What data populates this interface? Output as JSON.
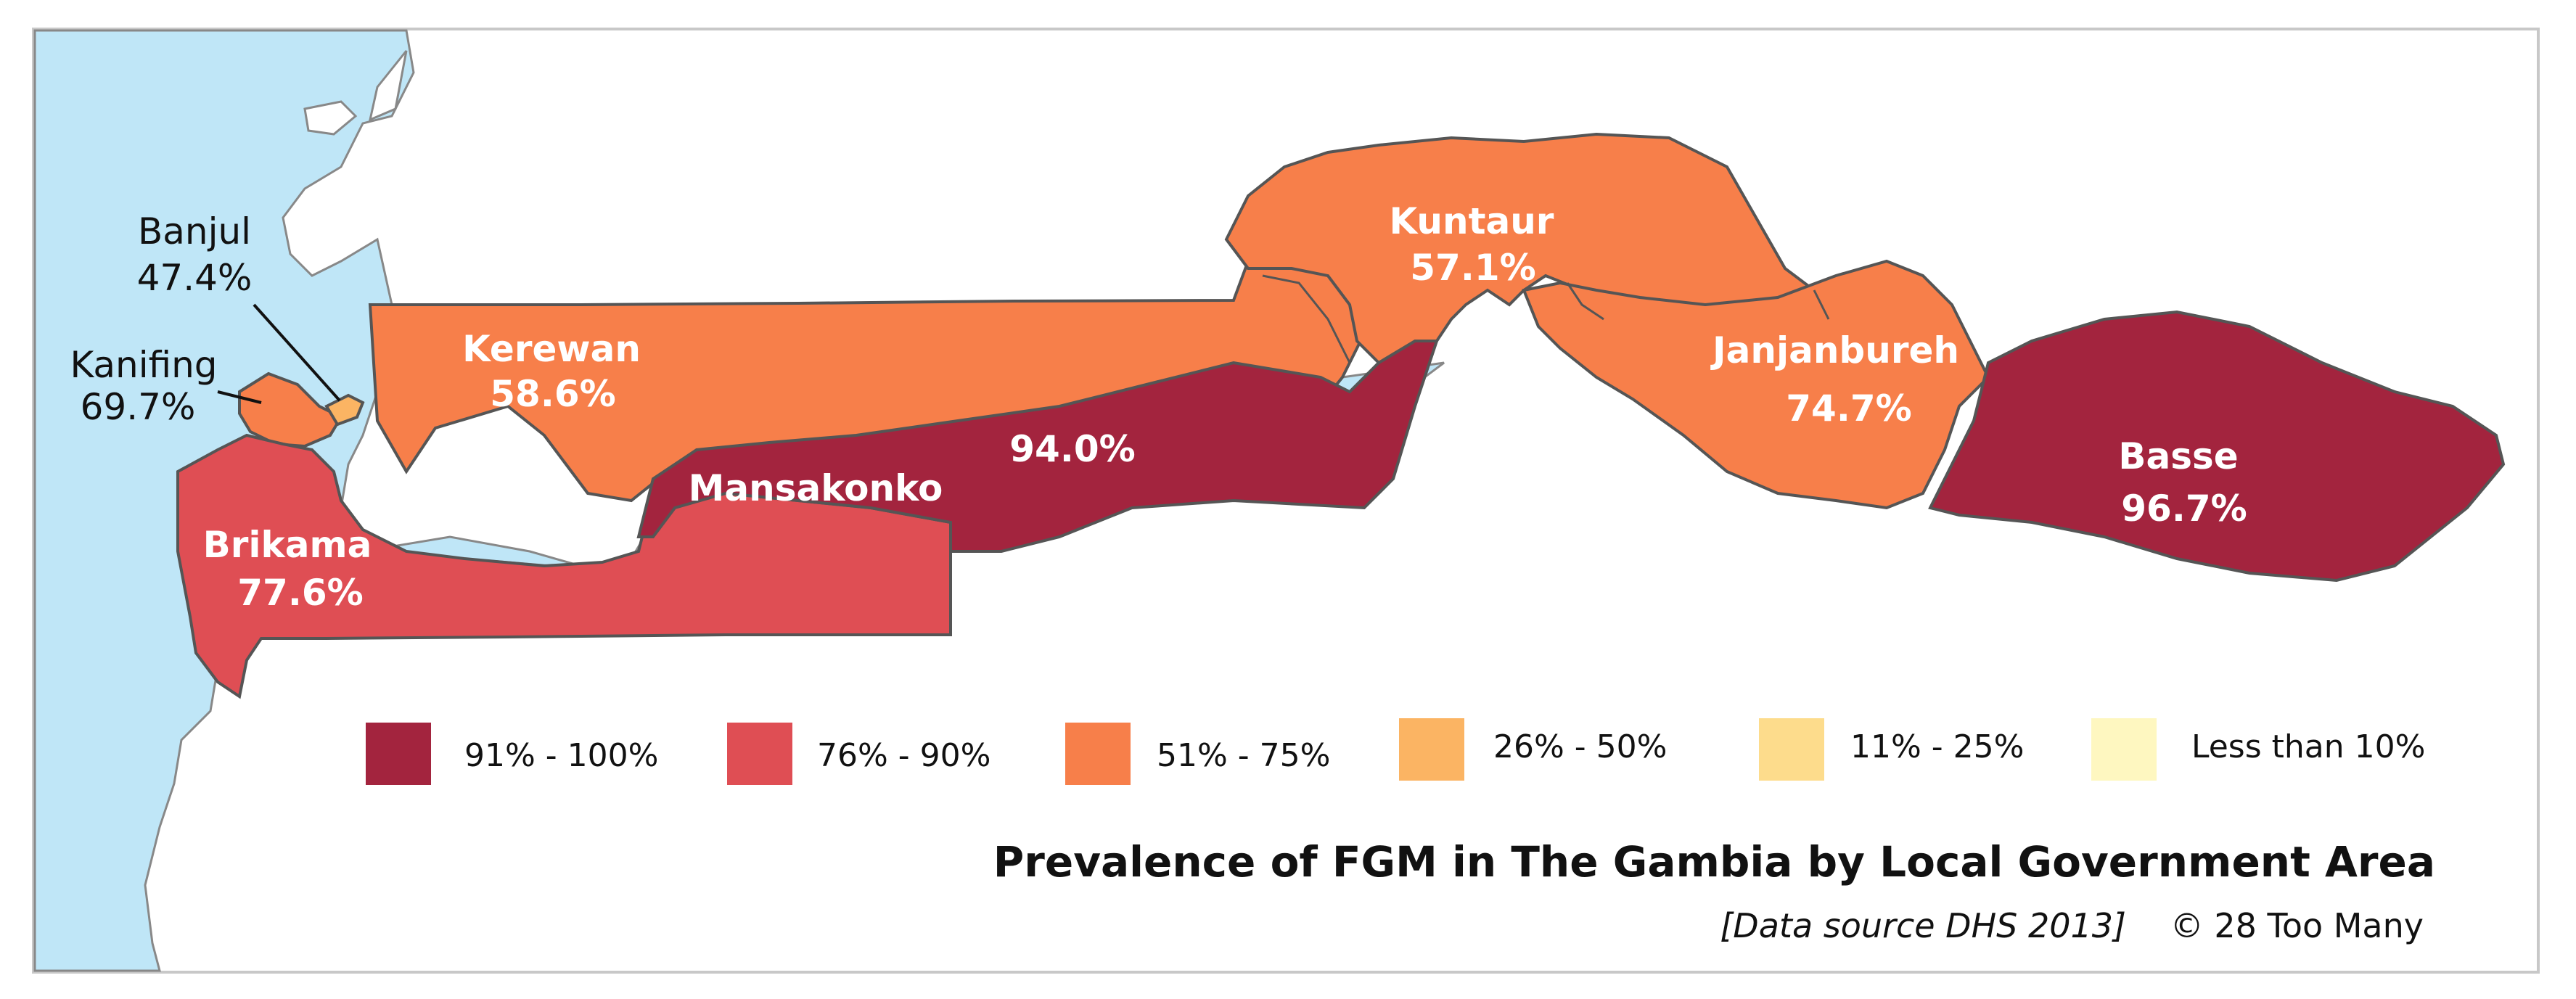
{
  "map": {
    "regions": [
      {
        "name": "Banjul",
        "value": "47.4%",
        "color": "#fbb463"
      },
      {
        "name": "Kanifing",
        "value": "69.7%",
        "color": "#f77f4a"
      },
      {
        "name": "Kerewan",
        "value": "58.6%",
        "color": "#f77f4a"
      },
      {
        "name": "Brikama",
        "value": "77.6%",
        "color": "#df4e54"
      },
      {
        "name": "Mansakonko",
        "value": "",
        "color": "#a3243e"
      },
      {
        "name": "",
        "value": "94.0%",
        "color": "#a3243e"
      },
      {
        "name": "Kuntaur",
        "value": "57.1%",
        "color": "#f77f4a"
      },
      {
        "name": "Janjanbureh",
        "value": "74.7%",
        "color": "#f77f4a"
      },
      {
        "name": "Basse",
        "value": "96.7%",
        "color": "#a3243e"
      }
    ],
    "water_color": "#bfe6f7",
    "legend": [
      {
        "label": "91% - 100%",
        "color": "#a3243e"
      },
      {
        "label": "76% - 90%",
        "color": "#df4e54"
      },
      {
        "label": "51% - 75%",
        "color": "#f77f4a"
      },
      {
        "label": "26% - 50%",
        "color": "#fbb463"
      },
      {
        "label": "11% - 25%",
        "color": "#fddc8c"
      },
      {
        "label": "Less than 10%",
        "color": "#fef7c0"
      }
    ],
    "title": "Prevalence of FGM in The Gambia by Local Government Area",
    "source": "[Data source DHS 2013]",
    "credit": "© 28 Too Many"
  }
}
